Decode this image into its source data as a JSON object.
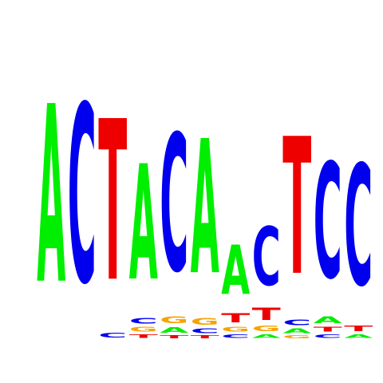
{
  "colors": {
    "A": "#00ee00",
    "C": "#0000ee",
    "G": "#f5a300",
    "T": "#ee0000"
  },
  "logo": {
    "positions": [
      {
        "stack": [
          {
            "base": "A",
            "bits": 1.88
          }
        ]
      },
      {
        "stack": [
          {
            "base": "C",
            "bits": 1.88
          }
        ]
      },
      {
        "stack": [
          {
            "base": "C",
            "bits": 0.05
          },
          {
            "base": "T",
            "bits": 1.7
          }
        ]
      },
      {
        "stack": [
          {
            "base": "T",
            "bits": 0.04
          },
          {
            "base": "G",
            "bits": 0.05
          },
          {
            "base": "C",
            "bits": 0.06
          },
          {
            "base": "A",
            "bits": 1.22
          }
        ]
      },
      {
        "stack": [
          {
            "base": "T",
            "bits": 0.03
          },
          {
            "base": "A",
            "bits": 0.06
          },
          {
            "base": "G",
            "bits": 0.07
          },
          {
            "base": "C",
            "bits": 1.45
          }
        ]
      },
      {
        "stack": [
          {
            "base": "T",
            "bits": 0.03
          },
          {
            "base": "C",
            "bits": 0.05
          },
          {
            "base": "G",
            "bits": 0.07
          },
          {
            "base": "A",
            "bits": 1.42
          }
        ]
      },
      {
        "stack": [
          {
            "base": "C",
            "bits": 0.04
          },
          {
            "base": "G",
            "bits": 0.05
          },
          {
            "base": "T",
            "bits": 0.1
          },
          {
            "base": "A",
            "bits": 0.52
          }
        ]
      },
      {
        "stack": [
          {
            "base": "A",
            "bits": 0.04
          },
          {
            "base": "G",
            "bits": 0.06
          },
          {
            "base": "T",
            "bits": 0.13
          },
          {
            "base": "C",
            "bits": 0.62
          }
        ]
      },
      {
        "stack": [
          {
            "base": "G",
            "bits": 0.03
          },
          {
            "base": "A",
            "bits": 0.05
          },
          {
            "base": "C",
            "bits": 0.06
          },
          {
            "base": "T",
            "bits": 1.45
          }
        ]
      },
      {
        "stack": [
          {
            "base": "C",
            "bits": 0.04
          },
          {
            "base": "T",
            "bits": 0.05
          },
          {
            "base": "A",
            "bits": 0.07
          },
          {
            "base": "C",
            "bits": 1.22
          }
        ]
      },
      {
        "stack": [
          {
            "base": "A",
            "bits": 0.04
          },
          {
            "base": "T",
            "bits": 0.06
          },
          {
            "base": "C",
            "bits": 1.28
          }
        ]
      }
    ]
  }
}
